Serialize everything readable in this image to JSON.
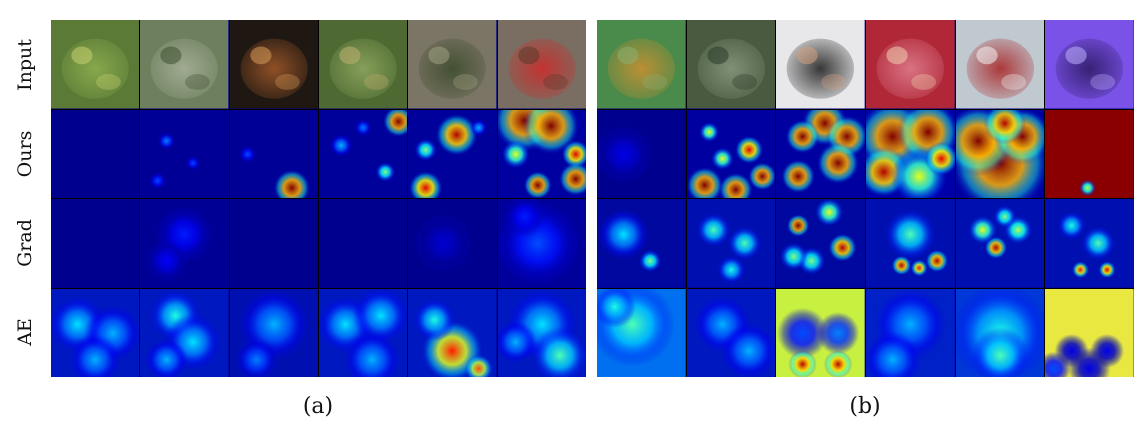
{
  "rows": [
    "Input",
    "Ours",
    "Grad",
    "AE"
  ],
  "panels": [
    {
      "caption": "(a)",
      "inputs": [
        {
          "icon": "acorn-cluster-photo",
          "bg": "#5a7a36",
          "fg": "#8fb050",
          "accent": "#c8d070"
        },
        {
          "icon": "oak-leaves-photo",
          "bg": "#6e7f5e",
          "fg": "#a9b39a",
          "accent": "#3e5030"
        },
        {
          "icon": "acorn-cap-photo",
          "bg": "#1f1812",
          "fg": "#a45a2a",
          "accent": "#d89a5a"
        },
        {
          "icon": "acorn-branch-photo",
          "bg": "#4e6a32",
          "fg": "#90a860",
          "accent": "#c0b070"
        },
        {
          "icon": "acorn-ground-photo",
          "bg": "#7b7565",
          "fg": "#3a4a2a",
          "accent": "#a0a080"
        },
        {
          "icon": "red-leaf-acorn-photo",
          "bg": "#7a6e62",
          "fg": "#d02828",
          "accent": "#5a3a2a"
        }
      ],
      "maps": {
        "Ours": [
          {
            "base": "#00008f",
            "blobs": []
          },
          {
            "base": "#000096",
            "blobs": [
              [
                0.3,
                0.35,
                0.06,
                0.25
              ],
              [
                0.6,
                0.6,
                0.05,
                0.2
              ],
              [
                0.2,
                0.8,
                0.06,
                0.2
              ]
            ]
          },
          {
            "base": "#000096",
            "blobs": [
              [
                0.7,
                0.88,
                0.13,
                1.0
              ],
              [
                0.2,
                0.5,
                0.06,
                0.2
              ]
            ]
          },
          {
            "base": "#00009a",
            "blobs": [
              [
                0.9,
                0.13,
                0.11,
                1.0
              ],
              [
                0.75,
                0.7,
                0.07,
                0.5
              ],
              [
                0.25,
                0.4,
                0.08,
                0.3
              ],
              [
                0.5,
                0.2,
                0.06,
                0.25
              ]
            ]
          },
          {
            "base": "#00009a",
            "blobs": [
              [
                0.55,
                0.28,
                0.15,
                0.95
              ],
              [
                0.2,
                0.45,
                0.08,
                0.5
              ],
              [
                0.2,
                0.88,
                0.12,
                0.9
              ],
              [
                0.8,
                0.2,
                0.06,
                0.3
              ]
            ]
          },
          {
            "base": "#0000a0",
            "blobs": [
              [
                0.3,
                0.12,
                0.22,
                1.0
              ],
              [
                0.6,
                0.18,
                0.2,
                1.0
              ],
              [
                0.88,
                0.5,
                0.1,
                0.9
              ],
              [
                0.88,
                0.78,
                0.12,
                1.0
              ],
              [
                0.45,
                0.85,
                0.1,
                1.0
              ],
              [
                0.2,
                0.5,
                0.1,
                0.6
              ]
            ]
          }
        ],
        "Grad": [
          {
            "base": "#00008f",
            "blobs": []
          },
          {
            "base": "#000094",
            "blobs": [
              [
                0.5,
                0.4,
                0.2,
                0.15
              ],
              [
                0.3,
                0.7,
                0.15,
                0.12
              ]
            ]
          },
          {
            "base": "#00008f",
            "blobs": []
          },
          {
            "base": "#00008f",
            "blobs": []
          },
          {
            "base": "#00008f",
            "blobs": [
              [
                0.4,
                0.5,
                0.2,
                0.08
              ]
            ]
          },
          {
            "base": "#00009a",
            "blobs": [
              [
                0.45,
                0.5,
                0.3,
                0.2
              ],
              [
                0.3,
                0.2,
                0.15,
                0.15
              ]
            ]
          }
        ],
        "AE": [
          {
            "base": "#0018c0",
            "blobs": [
              [
                0.3,
                0.4,
                0.2,
                0.35
              ],
              [
                0.7,
                0.5,
                0.2,
                0.3
              ],
              [
                0.5,
                0.8,
                0.18,
                0.3
              ]
            ]
          },
          {
            "base": "#0018c0",
            "blobs": [
              [
                0.4,
                0.3,
                0.18,
                0.4
              ],
              [
                0.6,
                0.6,
                0.2,
                0.35
              ],
              [
                0.3,
                0.8,
                0.15,
                0.3
              ]
            ]
          },
          {
            "base": "#0010b0",
            "blobs": [
              [
                0.5,
                0.4,
                0.25,
                0.3
              ],
              [
                0.3,
                0.8,
                0.15,
                0.25
              ]
            ]
          },
          {
            "base": "#0018c0",
            "blobs": [
              [
                0.3,
                0.4,
                0.2,
                0.35
              ],
              [
                0.7,
                0.3,
                0.2,
                0.35
              ],
              [
                0.6,
                0.8,
                0.2,
                0.3
              ]
            ]
          },
          {
            "base": "#0018c0",
            "blobs": [
              [
                0.5,
                0.7,
                0.22,
                0.85
              ],
              [
                0.3,
                0.35,
                0.15,
                0.4
              ],
              [
                0.8,
                0.9,
                0.1,
                0.8
              ]
            ]
          },
          {
            "base": "#0018c0",
            "blobs": [
              [
                0.5,
                0.4,
                0.25,
                0.35
              ],
              [
                0.7,
                0.75,
                0.2,
                0.45
              ],
              [
                0.2,
                0.6,
                0.15,
                0.3
              ]
            ]
          }
        ]
      }
    },
    {
      "caption": "(b)",
      "inputs": [
        {
          "icon": "fish-net-photo",
          "bg": "#4a8a4a",
          "fg": "#d09030",
          "accent": "#8ab070"
        },
        {
          "icon": "crocodile-photo",
          "bg": "#4a5a40",
          "fg": "#8a9a80",
          "accent": "#2a3a28"
        },
        {
          "icon": "telephone-photo",
          "bg": "#e8e8ea",
          "fg": "#181818",
          "accent": "#d4a080"
        },
        {
          "icon": "strawberry-photo",
          "bg": "#b02838",
          "fg": "#e08090",
          "accent": "#f0d0b0"
        },
        {
          "icon": "red-barn-photo",
          "bg": "#c0c8d0",
          "fg": "#a82020",
          "accent": "#f2f2f2"
        },
        {
          "icon": "digital-clock-photo",
          "bg": "#7b52e8",
          "fg": "#2a1a60",
          "accent": "#c0b0ff"
        }
      ],
      "maps": {
        "Ours": [
          {
            "base": "#00008f",
            "blobs": [
              [
                0.3,
                0.5,
                0.2,
                0.1
              ]
            ]
          },
          {
            "base": "#0000a0",
            "blobs": [
              [
                0.2,
                0.85,
                0.13,
                1.0
              ],
              [
                0.55,
                0.9,
                0.12,
                1.0
              ],
              [
                0.85,
                0.75,
                0.1,
                1.0
              ],
              [
                0.7,
                0.45,
                0.1,
                0.9
              ],
              [
                0.25,
                0.25,
                0.07,
                0.6
              ],
              [
                0.4,
                0.55,
                0.08,
                0.6
              ]
            ]
          },
          {
            "base": "#0000a0",
            "blobs": [
              [
                0.55,
                0.15,
                0.16,
                1.0
              ],
              [
                0.8,
                0.3,
                0.15,
                1.0
              ],
              [
                0.7,
                0.6,
                0.15,
                1.0
              ],
              [
                0.3,
                0.3,
                0.12,
                1.0
              ],
              [
                0.25,
                0.75,
                0.12,
                1.0
              ]
            ]
          },
          {
            "base": "#0000a8",
            "blobs": [
              [
                0.3,
                0.3,
                0.25,
                1.0
              ],
              [
                0.7,
                0.25,
                0.22,
                1.0
              ],
              [
                0.2,
                0.7,
                0.18,
                0.95
              ],
              [
                0.6,
                0.75,
                0.2,
                0.6
              ],
              [
                0.85,
                0.55,
                0.12,
                0.9
              ]
            ]
          },
          {
            "base": "#0000a0",
            "blobs": [
              [
                0.5,
                0.6,
                0.35,
                1.0
              ],
              [
                0.25,
                0.35,
                0.25,
                1.0
              ],
              [
                0.75,
                0.3,
                0.2,
                1.0
              ],
              [
                0.55,
                0.15,
                0.15,
                0.95
              ]
            ]
          },
          {
            "base": "#8a0000",
            "blobs": [
              [
                0.48,
                0.88,
                0.06,
                0.55
              ]
            ]
          }
        ],
        "Grad": [
          {
            "base": "#0008a0",
            "blobs": [
              [
                0.3,
                0.4,
                0.18,
                0.35
              ],
              [
                0.6,
                0.7,
                0.08,
                0.5
              ]
            ]
          },
          {
            "base": "#0010b0",
            "blobs": [
              [
                0.3,
                0.35,
                0.12,
                0.45
              ],
              [
                0.65,
                0.5,
                0.12,
                0.45
              ],
              [
                0.5,
                0.8,
                0.1,
                0.4
              ]
            ]
          },
          {
            "base": "#0008a0",
            "blobs": [
              [
                0.25,
                0.3,
                0.08,
                1.0
              ],
              [
                0.75,
                0.55,
                0.1,
                0.95
              ],
              [
                0.6,
                0.15,
                0.1,
                0.6
              ],
              [
                0.4,
                0.7,
                0.1,
                0.5
              ],
              [
                0.2,
                0.65,
                0.1,
                0.5
              ]
            ]
          },
          {
            "base": "#0010b0",
            "blobs": [
              [
                0.4,
                0.75,
                0.07,
                0.95
              ],
              [
                0.8,
                0.7,
                0.08,
                0.95
              ],
              [
                0.5,
                0.4,
                0.18,
                0.45
              ],
              [
                0.6,
                0.78,
                0.06,
                0.85
              ]
            ]
          },
          {
            "base": "#0010b0",
            "blobs": [
              [
                0.45,
                0.55,
                0.08,
                0.95
              ],
              [
                0.3,
                0.35,
                0.1,
                0.6
              ],
              [
                0.7,
                0.35,
                0.1,
                0.55
              ],
              [
                0.55,
                0.2,
                0.08,
                0.5
              ]
            ]
          },
          {
            "base": "#0010b0",
            "blobs": [
              [
                0.7,
                0.8,
                0.06,
                0.9
              ],
              [
                0.4,
                0.8,
                0.06,
                0.85
              ],
              [
                0.6,
                0.5,
                0.12,
                0.45
              ],
              [
                0.3,
                0.3,
                0.1,
                0.4
              ]
            ]
          }
        ],
        "AE": [
          {
            "base": "#0070f0",
            "blobs": [
              [
                0.4,
                0.4,
                0.3,
                0.45
              ],
              [
                0.2,
                0.2,
                0.15,
                0.4
              ]
            ]
          },
          {
            "base": "#0018c0",
            "blobs": [
              [
                0.4,
                0.4,
                0.2,
                0.3
              ],
              [
                0.7,
                0.7,
                0.2,
                0.3
              ]
            ]
          },
          {
            "base": "#c8f040",
            "blobs": [
              [
                0.3,
                0.5,
                0.18,
                0.2
              ],
              [
                0.7,
                0.5,
                0.15,
                0.25
              ],
              [
                0.3,
                0.85,
                0.1,
                0.95
              ],
              [
                0.7,
                0.85,
                0.1,
                0.95
              ]
            ]
          },
          {
            "base": "#0020c8",
            "blobs": [
              [
                0.5,
                0.4,
                0.25,
                0.3
              ],
              [
                0.3,
                0.8,
                0.2,
                0.3
              ]
            ]
          },
          {
            "base": "#0038d8",
            "blobs": [
              [
                0.5,
                0.5,
                0.35,
                0.4
              ],
              [
                0.5,
                0.75,
                0.2,
                0.45
              ]
            ]
          },
          {
            "base": "#e8e840",
            "blobs": [
              [
                0.3,
                0.7,
                0.12,
                0.1
              ],
              [
                0.7,
                0.7,
                0.12,
                0.1
              ],
              [
                0.5,
                0.9,
                0.15,
                0.1
              ],
              [
                0.1,
                0.9,
                0.12,
                0.2
              ]
            ]
          }
        ]
      }
    }
  ]
}
